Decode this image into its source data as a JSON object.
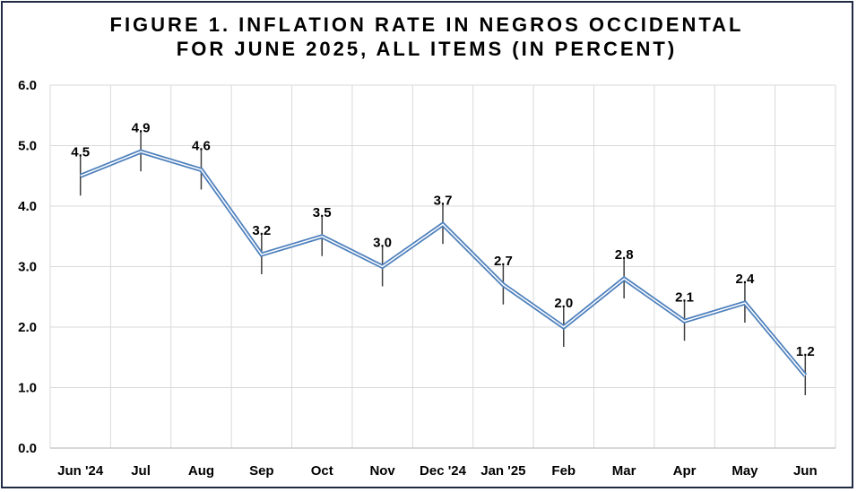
{
  "chart_data": {
    "type": "line",
    "title_lines": [
      "FIGURE 1. INFLATION RATE IN NEGROS OCCIDENTAL",
      "FOR JUNE 2025, ALL ITEMS (IN PERCENT)"
    ],
    "categories": [
      "Jun '24",
      "Jul",
      "Aug",
      "Sep",
      "Oct",
      "Nov",
      "Dec '24",
      "Jan '25",
      "Feb",
      "Mar",
      "Apr",
      "May",
      "Jun"
    ],
    "values": [
      4.5,
      4.9,
      4.6,
      3.2,
      3.5,
      3.0,
      3.7,
      2.7,
      2.0,
      2.8,
      2.1,
      2.4,
      1.2
    ],
    "data_labels": [
      "4.5",
      "4.9",
      "4.6",
      "3.2",
      "3.5",
      "3.0",
      "3.7",
      "2.7",
      "2.0",
      "2.8",
      "2.1",
      "2.4",
      "1.2"
    ],
    "y_ticks": [
      "0.0",
      "1.0",
      "2.0",
      "3.0",
      "4.0",
      "5.0",
      "6.0"
    ],
    "ylim": [
      0,
      6
    ],
    "xlabel": "",
    "ylabel": "",
    "grid": true,
    "legend": "none",
    "colors": {
      "line": "#4f81bd",
      "line_inner": "#ffffff",
      "error_bar": "#404040",
      "grid": "#d9d9d9",
      "axis": "#bfbfbf",
      "border": "#1f2a44"
    }
  }
}
